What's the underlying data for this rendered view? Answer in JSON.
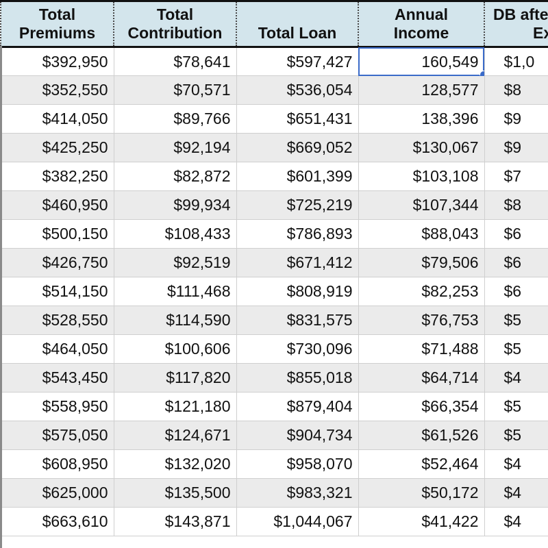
{
  "headers": {
    "total_premiums": [
      "Total",
      "Premiums"
    ],
    "total_contribution": [
      "Total",
      "Contribution"
    ],
    "total_loan": "Total Loan",
    "annual_income": [
      "Annual",
      "Income"
    ],
    "db_after_ex": [
      "DB afte",
      "Ex"
    ]
  },
  "rows": [
    {
      "premiums": "$392,950",
      "contribution": "$78,641",
      "loan": "$597,427",
      "income": "160,549",
      "db": "$1,0"
    },
    {
      "premiums": "$352,550",
      "contribution": "$70,571",
      "loan": "$536,054",
      "income": "128,577",
      "db": "$8"
    },
    {
      "premiums": "$414,050",
      "contribution": "$89,766",
      "loan": "$651,431",
      "income": "138,396",
      "db": "$9"
    },
    {
      "premiums": "$425,250",
      "contribution": "$92,194",
      "loan": "$669,052",
      "income": "$130,067",
      "db": "$9"
    },
    {
      "premiums": "$382,250",
      "contribution": "$82,872",
      "loan": "$601,399",
      "income": "$103,108",
      "db": "$7"
    },
    {
      "premiums": "$460,950",
      "contribution": "$99,934",
      "loan": "$725,219",
      "income": "$107,344",
      "db": "$8"
    },
    {
      "premiums": "$500,150",
      "contribution": "$108,433",
      "loan": "$786,893",
      "income": "$88,043",
      "db": "$6"
    },
    {
      "premiums": "$426,750",
      "contribution": "$92,519",
      "loan": "$671,412",
      "income": "$79,506",
      "db": "$6"
    },
    {
      "premiums": "$514,150",
      "contribution": "$111,468",
      "loan": "$808,919",
      "income": "$82,253",
      "db": "$6"
    },
    {
      "premiums": "$528,550",
      "contribution": "$114,590",
      "loan": "$831,575",
      "income": "$76,753",
      "db": "$5"
    },
    {
      "premiums": "$464,050",
      "contribution": "$100,606",
      "loan": "$730,096",
      "income": "$71,488",
      "db": "$5"
    },
    {
      "premiums": "$543,450",
      "contribution": "$117,820",
      "loan": "$855,018",
      "income": "$64,714",
      "db": "$4"
    },
    {
      "premiums": "$558,950",
      "contribution": "$121,180",
      "loan": "$879,404",
      "income": "$66,354",
      "db": "$5"
    },
    {
      "premiums": "$575,050",
      "contribution": "$124,671",
      "loan": "$904,734",
      "income": "$61,526",
      "db": "$5"
    },
    {
      "premiums": "$608,950",
      "contribution": "$132,020",
      "loan": "$958,070",
      "income": "$52,464",
      "db": "$4"
    },
    {
      "premiums": "$625,000",
      "contribution": "$135,500",
      "loan": "$983,321",
      "income": "$50,172",
      "db": "$4"
    },
    {
      "premiums": "$663,610",
      "contribution": "$143,871",
      "loan": "$1,044,067",
      "income": "$41,422",
      "db": "$4"
    }
  ],
  "selection": {
    "row": 0,
    "column": "income"
  },
  "colors": {
    "header_bg": "#d3e5ec",
    "stripe": "#ebebeb",
    "selection": "#3a6bc9"
  }
}
